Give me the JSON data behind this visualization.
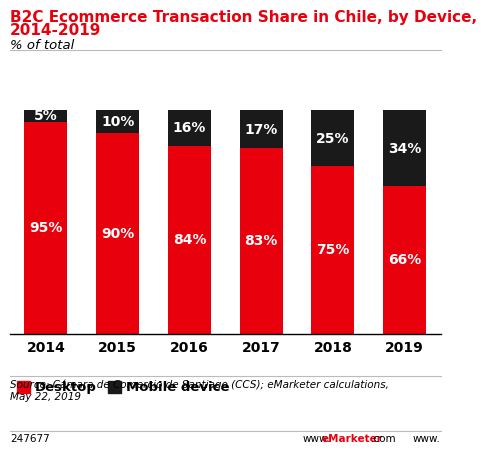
{
  "title_line1": "B2C Ecommerce Transaction Share in Chile, by Device,",
  "title_line2": "2014-2019",
  "subtitle": "% of total",
  "years": [
    "2014",
    "2015",
    "2016",
    "2017",
    "2018",
    "2019"
  ],
  "desktop": [
    95,
    90,
    84,
    83,
    75,
    66
  ],
  "mobile": [
    5,
    10,
    16,
    17,
    25,
    34
  ],
  "desktop_color": "#e8000d",
  "mobile_color": "#1a1a1a",
  "bar_width": 0.6,
  "ylim": [
    0,
    100
  ],
  "source_text": "Source: Cámara de Comercio de Santiago (CCS); eMarketer calculations,\nMay 22, 2019",
  "id_text": "247677",
  "url_text": "www.eMarketer.com",
  "legend_desktop": "Desktop",
  "legend_mobile": "Mobile device",
  "title_fontsize": 11,
  "subtitle_fontsize": 9.5,
  "label_fontsize": 10,
  "legend_fontsize": 9.5,
  "source_fontsize": 7.5,
  "axis_label_fontsize": 10,
  "background_color": "#ffffff"
}
